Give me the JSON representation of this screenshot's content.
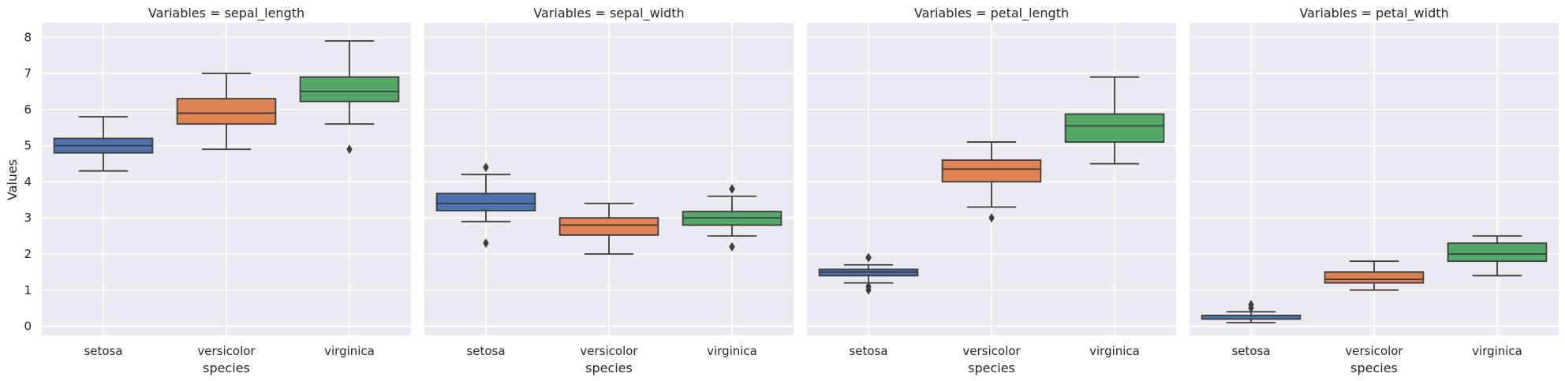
{
  "chart_data": {
    "type": "box",
    "facet_variable": "Variables",
    "xlabel": "species",
    "ylabel": "Values",
    "categories": [
      "setosa",
      "versicolor",
      "virginica"
    ],
    "colors": [
      "#4c72b0",
      "#dd8452",
      "#55a868"
    ],
    "ylim": [
      -0.25,
      8.4
    ],
    "yticks": [
      "0",
      "1",
      "2",
      "3",
      "4",
      "5",
      "6",
      "7",
      "8"
    ],
    "grid": true,
    "panels": [
      {
        "title": "Variables = sepal_length",
        "boxes": [
          {
            "category": "setosa",
            "whisker_low": 4.3,
            "q1": 4.8,
            "median": 5.0,
            "q3": 5.2,
            "whisker_high": 5.8,
            "outliers": []
          },
          {
            "category": "versicolor",
            "whisker_low": 4.9,
            "q1": 5.6,
            "median": 5.9,
            "q3": 6.3,
            "whisker_high": 7.0,
            "outliers": []
          },
          {
            "category": "virginica",
            "whisker_low": 5.6,
            "q1": 6.225,
            "median": 6.5,
            "q3": 6.9,
            "whisker_high": 7.9,
            "outliers": [
              4.9
            ]
          }
        ]
      },
      {
        "title": "Variables = sepal_width",
        "boxes": [
          {
            "category": "setosa",
            "whisker_low": 2.9,
            "q1": 3.2,
            "median": 3.4,
            "q3": 3.675,
            "whisker_high": 4.2,
            "outliers": [
              4.4,
              2.3
            ]
          },
          {
            "category": "versicolor",
            "whisker_low": 2.0,
            "q1": 2.525,
            "median": 2.8,
            "q3": 3.0,
            "whisker_high": 3.4,
            "outliers": []
          },
          {
            "category": "virginica",
            "whisker_low": 2.5,
            "q1": 2.8,
            "median": 3.0,
            "q3": 3.175,
            "whisker_high": 3.6,
            "outliers": [
              3.8,
              3.8,
              2.2
            ]
          }
        ]
      },
      {
        "title": "Variables = petal_length",
        "boxes": [
          {
            "category": "setosa",
            "whisker_low": 1.2,
            "q1": 1.4,
            "median": 1.5,
            "q3": 1.575,
            "whisker_high": 1.7,
            "outliers": [
              1.9,
              1.9,
              1.1,
              1.0
            ]
          },
          {
            "category": "versicolor",
            "whisker_low": 3.3,
            "q1": 4.0,
            "median": 4.35,
            "q3": 4.6,
            "whisker_high": 5.1,
            "outliers": [
              3.0
            ]
          },
          {
            "category": "virginica",
            "whisker_low": 4.5,
            "q1": 5.1,
            "median": 5.55,
            "q3": 5.875,
            "whisker_high": 6.9,
            "outliers": []
          }
        ]
      },
      {
        "title": "Variables = petal_width",
        "boxes": [
          {
            "category": "setosa",
            "whisker_low": 0.1,
            "q1": 0.2,
            "median": 0.2,
            "q3": 0.3,
            "whisker_high": 0.4,
            "outliers": [
              0.5,
              0.6
            ]
          },
          {
            "category": "versicolor",
            "whisker_low": 1.0,
            "q1": 1.2,
            "median": 1.3,
            "q3": 1.5,
            "whisker_high": 1.8,
            "outliers": []
          },
          {
            "category": "virginica",
            "whisker_low": 1.4,
            "q1": 1.8,
            "median": 2.0,
            "q3": 2.3,
            "whisker_high": 2.5,
            "outliers": []
          }
        ]
      }
    ]
  }
}
